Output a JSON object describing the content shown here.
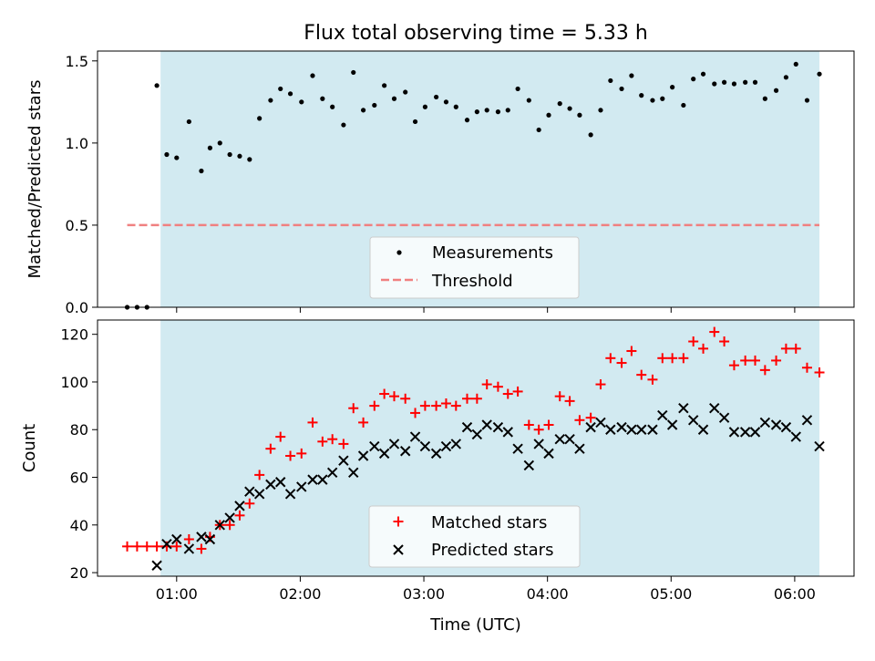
{
  "chart_data": [
    {
      "type": "scatter",
      "title": "Flux total observing time = 5.33 h",
      "xlabel": "",
      "ylabel": "Matched/Predicted stars",
      "xlim": [
        0.36,
        6.48
      ],
      "ylim": [
        0,
        1.56
      ],
      "yticks": [
        0,
        0.5,
        1.0,
        1.5
      ],
      "ytick_labels": [
        "0.0",
        "0.5",
        "1.0",
        "1.5"
      ],
      "xticks": [
        1,
        2,
        3,
        4,
        5,
        6
      ],
      "shaded_span": {
        "x": [
          0.87,
          6.2
        ],
        "color": "#add8e6"
      },
      "legend": {
        "position": "lower-center",
        "entries": [
          "Measurements",
          "Threshold"
        ]
      },
      "series": [
        {
          "name": "Measurements",
          "kind": "scatter",
          "color": "#000000",
          "x": [
            0.6,
            0.68,
            0.76,
            0.84,
            0.92,
            1.0,
            1.1,
            1.2,
            1.27,
            1.35,
            1.43,
            1.51,
            1.59,
            1.67,
            1.76,
            1.84,
            1.92,
            2.01,
            2.1,
            2.18,
            2.26,
            2.35,
            2.43,
            2.51,
            2.6,
            2.68,
            2.76,
            2.85,
            2.93,
            3.01,
            3.1,
            3.18,
            3.26,
            3.35,
            3.43,
            3.51,
            3.6,
            3.68,
            3.76,
            3.85,
            3.93,
            4.01,
            4.1,
            4.18,
            4.26,
            4.35,
            4.43,
            4.51,
            4.6,
            4.68,
            4.76,
            4.85,
            4.93,
            5.01,
            5.1,
            5.18,
            5.26,
            5.35,
            5.43,
            5.51,
            5.6,
            5.68,
            5.76,
            5.85,
            5.93,
            6.01,
            6.1,
            6.2
          ],
          "y": [
            0,
            0,
            0,
            1.35,
            0.93,
            0.91,
            1.13,
            0.83,
            0.97,
            1.0,
            0.93,
            0.92,
            0.9,
            1.15,
            1.26,
            1.33,
            1.3,
            1.25,
            1.41,
            1.27,
            1.22,
            1.11,
            1.43,
            1.2,
            1.23,
            1.35,
            1.27,
            1.31,
            1.13,
            1.22,
            1.28,
            1.25,
            1.22,
            1.14,
            1.19,
            1.2,
            1.19,
            1.2,
            1.33,
            1.26,
            1.08,
            1.17,
            1.24,
            1.21,
            1.17,
            1.05,
            1.2,
            1.38,
            1.33,
            1.41,
            1.29,
            1.26,
            1.27,
            1.34,
            1.23,
            1.39,
            1.42,
            1.36,
            1.37,
            1.36,
            1.37,
            1.37,
            1.27,
            1.32,
            1.4,
            1.48,
            1.26,
            1.42
          ]
        },
        {
          "name": "Threshold",
          "kind": "line",
          "style": "dashed",
          "color": "#f08080",
          "x": [
            0.6,
            6.2
          ],
          "y": [
            0.5,
            0.5
          ]
        }
      ]
    },
    {
      "type": "scatter",
      "title": "",
      "xlabel": "Time (UTC)",
      "ylabel": "Count",
      "xlim": [
        0.36,
        6.48
      ],
      "ylim": [
        18.5,
        126
      ],
      "yticks": [
        20,
        40,
        60,
        80,
        100,
        120
      ],
      "ytick_labels": [
        "20",
        "40",
        "60",
        "80",
        "100",
        "120"
      ],
      "xticks": [
        1,
        2,
        3,
        4,
        5,
        6
      ],
      "xtick_labels": [
        "01:00",
        "02:00",
        "03:00",
        "04:00",
        "05:00",
        "06:00"
      ],
      "shaded_span": {
        "x": [
          0.87,
          6.2
        ],
        "color": "#add8e6"
      },
      "legend": {
        "position": "lower-center",
        "entries": [
          "Matched stars",
          "Predicted stars"
        ]
      },
      "series": [
        {
          "name": "Matched stars",
          "marker": "plus",
          "color": "#ff0000",
          "x": [
            0.6,
            0.68,
            0.76,
            0.84,
            0.92,
            1.0,
            1.1,
            1.2,
            1.27,
            1.35,
            1.43,
            1.51,
            1.59,
            1.67,
            1.76,
            1.84,
            1.92,
            2.01,
            2.1,
            2.18,
            2.26,
            2.35,
            2.43,
            2.51,
            2.6,
            2.68,
            2.76,
            2.85,
            2.93,
            3.01,
            3.1,
            3.18,
            3.26,
            3.35,
            3.43,
            3.51,
            3.6,
            3.68,
            3.76,
            3.85,
            3.93,
            4.01,
            4.1,
            4.18,
            4.26,
            4.35,
            4.43,
            4.51,
            4.6,
            4.68,
            4.76,
            4.85,
            4.93,
            5.01,
            5.1,
            5.18,
            5.26,
            5.35,
            5.43,
            5.51,
            5.6,
            5.68,
            5.76,
            5.85,
            5.93,
            6.01,
            6.1,
            6.2
          ],
          "y": [
            31,
            31,
            31,
            31,
            31,
            31,
            34,
            30,
            35,
            40,
            40,
            44,
            49,
            61,
            72,
            77,
            69,
            70,
            83,
            75,
            76,
            74,
            89,
            83,
            90,
            95,
            94,
            93,
            87,
            90,
            90,
            91,
            90,
            93,
            93,
            99,
            98,
            95,
            96,
            82,
            80,
            82,
            94,
            92,
            84,
            85,
            99,
            110,
            108,
            113,
            103,
            101,
            110,
            110,
            110,
            117,
            114,
            121,
            117,
            107,
            109,
            109,
            105,
            109,
            114,
            114,
            106,
            104
          ]
        },
        {
          "name": "Predicted stars",
          "marker": "cross",
          "color": "#000000",
          "x": [
            0.84,
            0.92,
            1.0,
            1.1,
            1.2,
            1.27,
            1.35,
            1.43,
            1.51,
            1.59,
            1.67,
            1.76,
            1.84,
            1.92,
            2.01,
            2.1,
            2.18,
            2.26,
            2.35,
            2.43,
            2.51,
            2.6,
            2.68,
            2.76,
            2.85,
            2.93,
            3.01,
            3.1,
            3.18,
            3.26,
            3.35,
            3.43,
            3.51,
            3.6,
            3.68,
            3.76,
            3.85,
            3.93,
            4.01,
            4.1,
            4.18,
            4.26,
            4.35,
            4.43,
            4.51,
            4.6,
            4.68,
            4.76,
            4.85,
            4.93,
            5.01,
            5.1,
            5.18,
            5.26,
            5.35,
            5.43,
            5.51,
            5.6,
            5.68,
            5.76,
            5.85,
            5.93,
            6.01,
            6.1,
            6.2
          ],
          "y": [
            23,
            32,
            34,
            30,
            35,
            34,
            40,
            43,
            48,
            54,
            53,
            57,
            58,
            53,
            56,
            59,
            59,
            62,
            67,
            62,
            69,
            73,
            70,
            74,
            71,
            77,
            73,
            70,
            73,
            74,
            81,
            78,
            82,
            81,
            79,
            72,
            65,
            74,
            70,
            76,
            76,
            72,
            81,
            83,
            80,
            81,
            80,
            80,
            80,
            86,
            82,
            89,
            84,
            80,
            89,
            85,
            79,
            79,
            79,
            83,
            82,
            81,
            77,
            84,
            73
          ]
        }
      ]
    }
  ]
}
